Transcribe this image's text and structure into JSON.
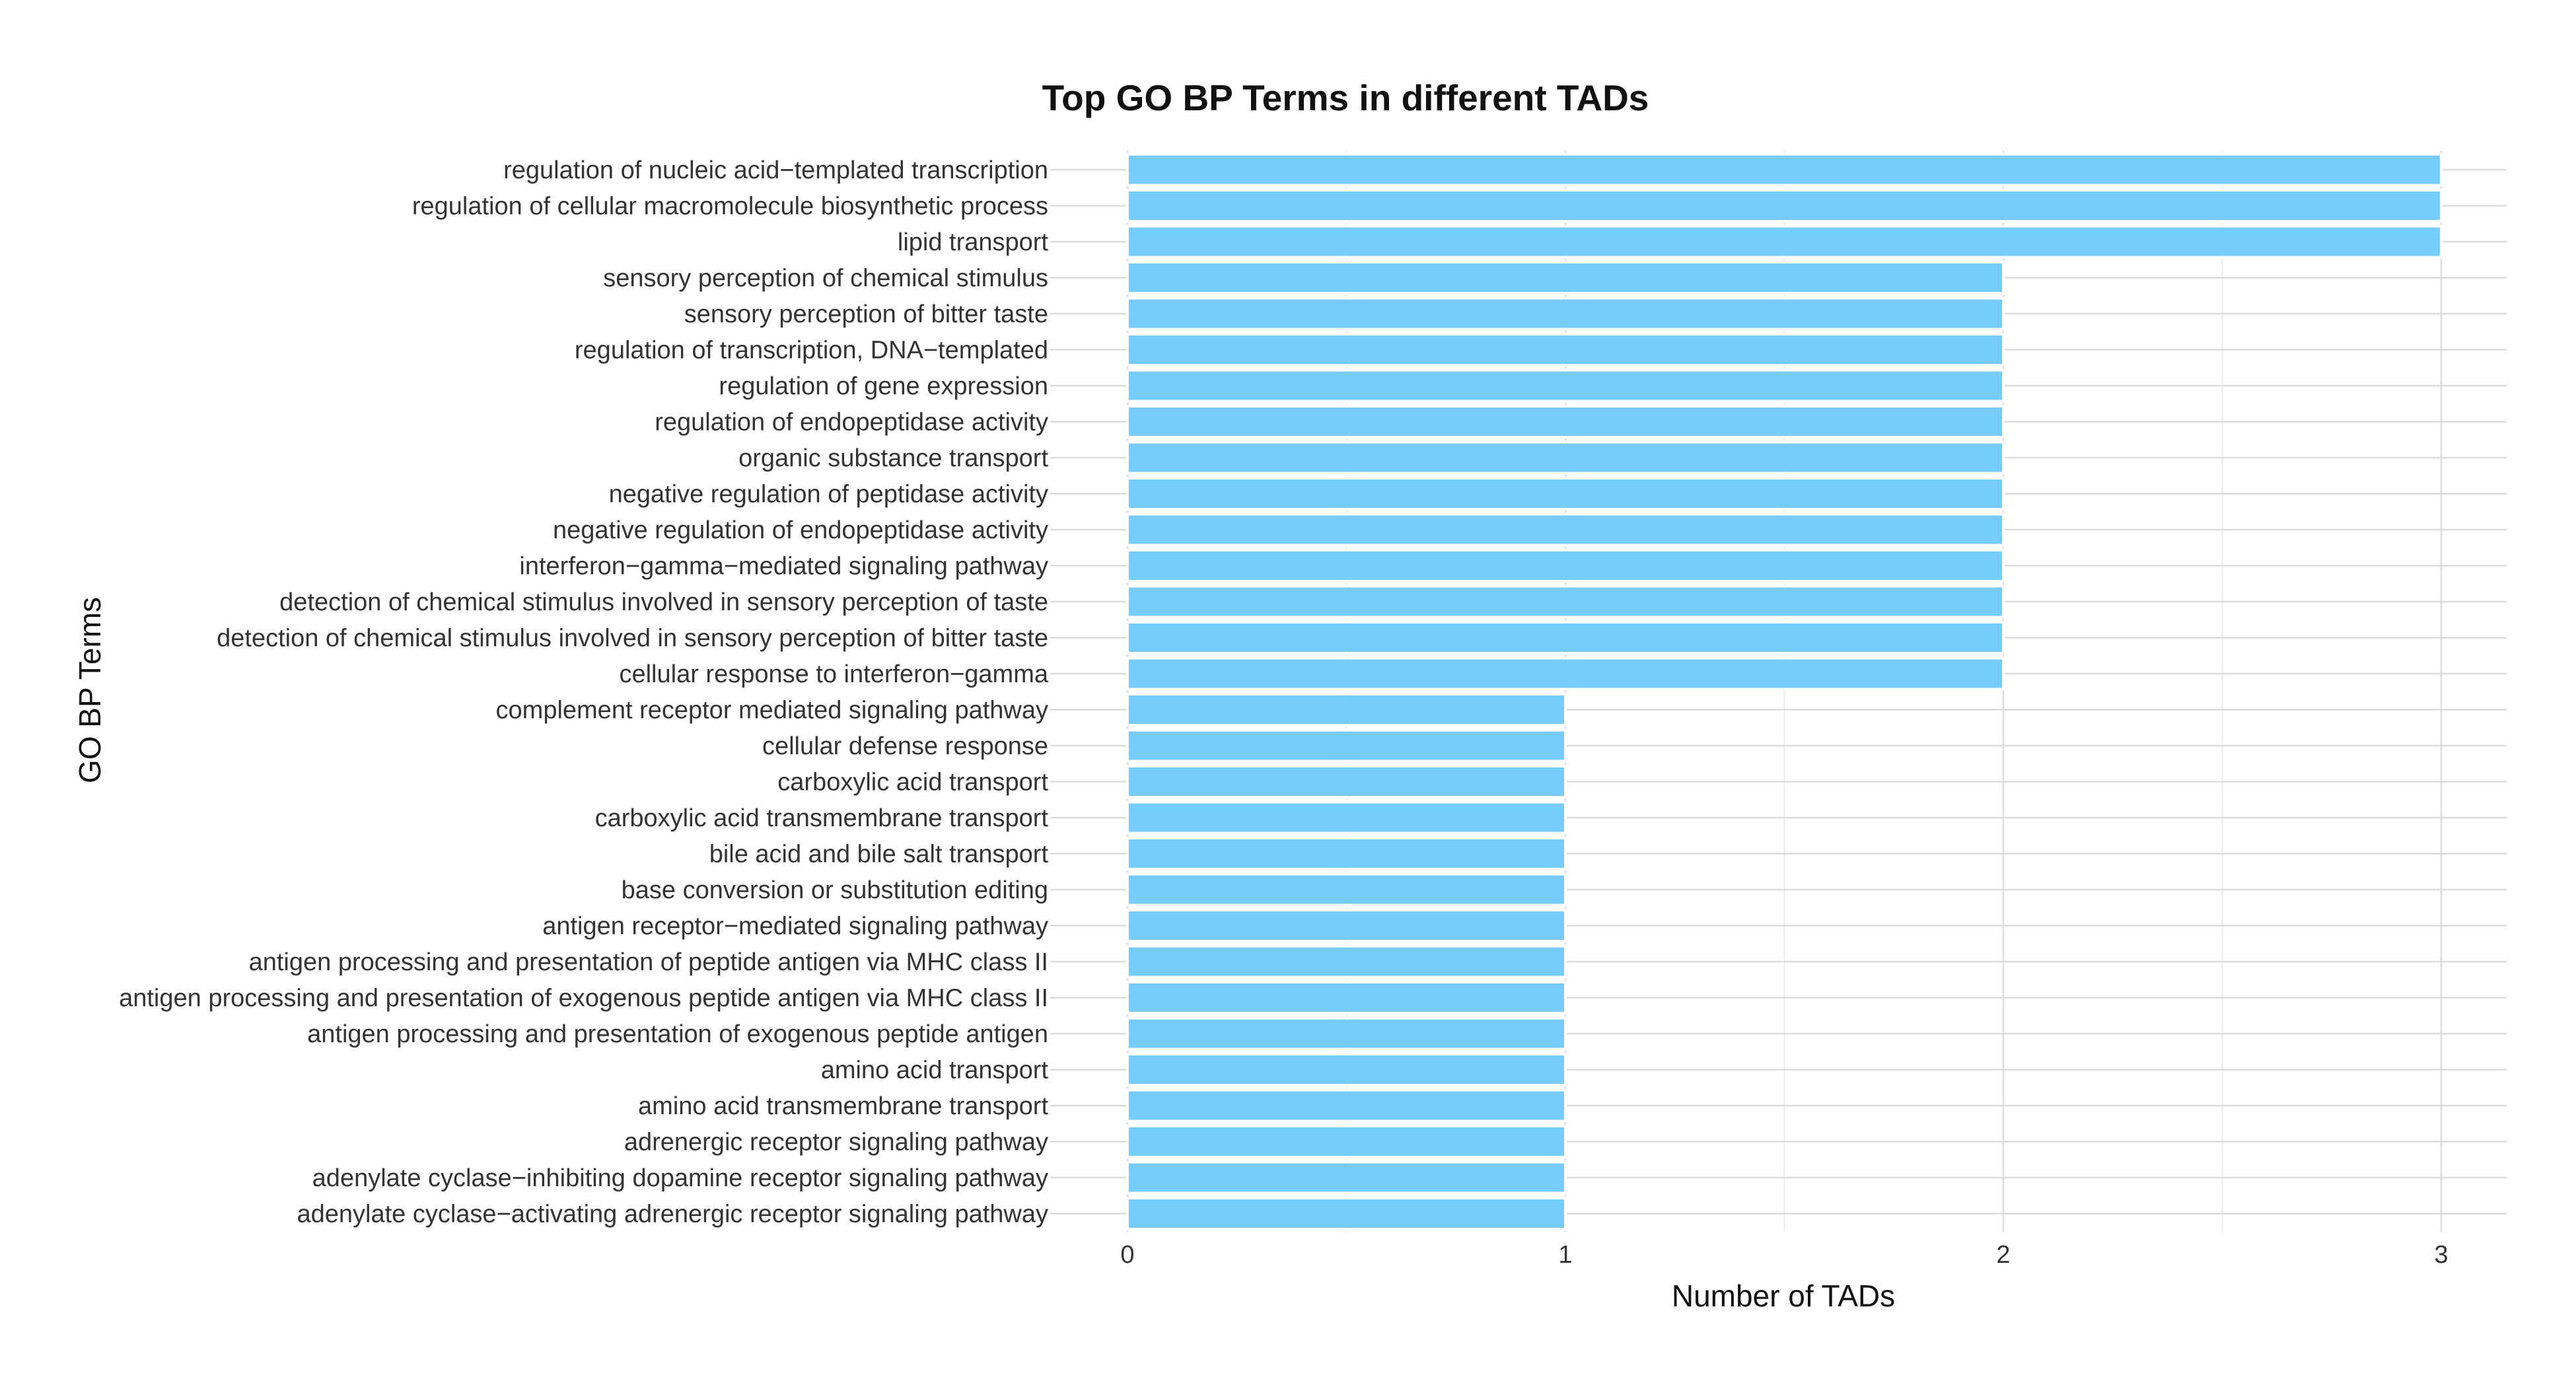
{
  "chart_data": {
    "type": "bar",
    "orientation": "horizontal",
    "title": "Top GO BP Terms in different TADs",
    "xlabel": "Number of TADs",
    "ylabel": "GO BP Terms",
    "xlim": [
      0,
      3.15
    ],
    "xticks": [
      0,
      1,
      2,
      3
    ],
    "grid": true,
    "legend": "none",
    "bar_color": "#76cdfc",
    "bar_outline": "#ffffff",
    "categories": [
      "regulation of nucleic acid−templated transcription",
      "regulation of cellular macromolecule biosynthetic process",
      "lipid transport",
      "sensory perception of chemical stimulus",
      "sensory perception of bitter taste",
      "regulation of transcription, DNA−templated",
      "regulation of gene expression",
      "regulation of endopeptidase activity",
      "organic substance transport",
      "negative regulation of peptidase activity",
      "negative regulation of endopeptidase activity",
      "interferon−gamma−mediated signaling pathway",
      "detection of chemical stimulus involved in sensory perception of taste",
      "detection of chemical stimulus involved in sensory perception of bitter taste",
      "cellular response to interferon−gamma",
      "complement receptor mediated signaling pathway",
      "cellular defense response",
      "carboxylic acid transport",
      "carboxylic acid transmembrane transport",
      "bile acid and bile salt transport",
      "base conversion or substitution editing",
      "antigen receptor−mediated signaling pathway",
      "antigen processing and presentation of peptide antigen via MHC class II",
      "antigen processing and presentation of exogenous peptide antigen via MHC class II",
      "antigen processing and presentation of exogenous peptide antigen",
      "amino acid transport",
      "amino acid transmembrane transport",
      "adrenergic receptor signaling pathway",
      "adenylate cyclase−inhibiting dopamine receptor signaling pathway",
      "adenylate cyclase−activating adrenergic receptor signaling pathway"
    ],
    "values": [
      3,
      3,
      3,
      2,
      2,
      2,
      2,
      2,
      2,
      2,
      2,
      2,
      2,
      2,
      2,
      1,
      1,
      1,
      1,
      1,
      1,
      1,
      1,
      1,
      1,
      1,
      1,
      1,
      1,
      1
    ]
  }
}
